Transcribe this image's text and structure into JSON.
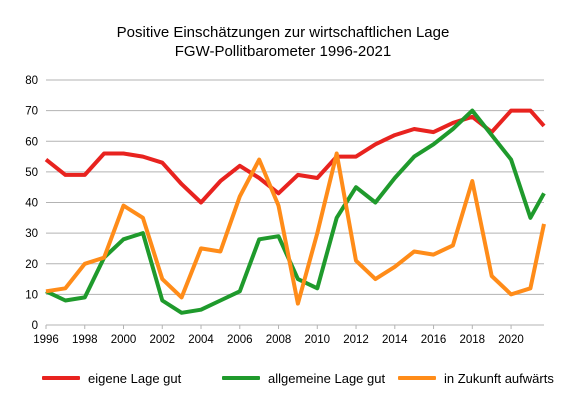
{
  "chart_data": {
    "type": "line",
    "title": "Positive Einschätzungen zur wirtschaftlichen Lage",
    "subtitle": "FGW-Pollitbarometer 1996-2021",
    "xlabel": "",
    "ylabel": "",
    "xlim": [
      1996,
      2021.7
    ],
    "ylim": [
      0,
      80
    ],
    "x_ticks": [
      1996,
      1998,
      2000,
      2002,
      2004,
      2006,
      2008,
      2010,
      2012,
      2014,
      2016,
      2018,
      2020
    ],
    "y_ticks": [
      0,
      10,
      20,
      30,
      40,
      50,
      60,
      70,
      80
    ],
    "grid": "horizontal",
    "legend_position": "bottom",
    "x": [
      1996,
      1997,
      1998,
      1999,
      2000,
      2001,
      2002,
      2003,
      2004,
      2005,
      2006,
      2007,
      2008,
      2009,
      2010,
      2011,
      2012,
      2013,
      2014,
      2015,
      2016,
      2017,
      2018,
      2019,
      2020,
      2021,
      2021.7
    ],
    "series": [
      {
        "name": "eigene Lage gut",
        "color": "#e8231f",
        "values": [
          54,
          49,
          49,
          56,
          56,
          55,
          53,
          46,
          40,
          47,
          52,
          48,
          43,
          49,
          48,
          55,
          55,
          59,
          62,
          64,
          63,
          66,
          68,
          63,
          70,
          70,
          65
        ]
      },
      {
        "name": "allgemeine Lage gut",
        "color": "#1f9a2c",
        "values": [
          11,
          8,
          9,
          22,
          28,
          30,
          8,
          4,
          5,
          8,
          11,
          28,
          29,
          15,
          12,
          35,
          45,
          40,
          48,
          55,
          59,
          64,
          70,
          62,
          54,
          35,
          43
        ]
      },
      {
        "name": "in Zukunft aufwärts",
        "color": "#ff8c19",
        "values": [
          11,
          12,
          20,
          22,
          39,
          35,
          15,
          9,
          25,
          24,
          42,
          54,
          39,
          7,
          30,
          56,
          21,
          15,
          19,
          24,
          23,
          26,
          47,
          16,
          10,
          12,
          33
        ]
      }
    ]
  }
}
